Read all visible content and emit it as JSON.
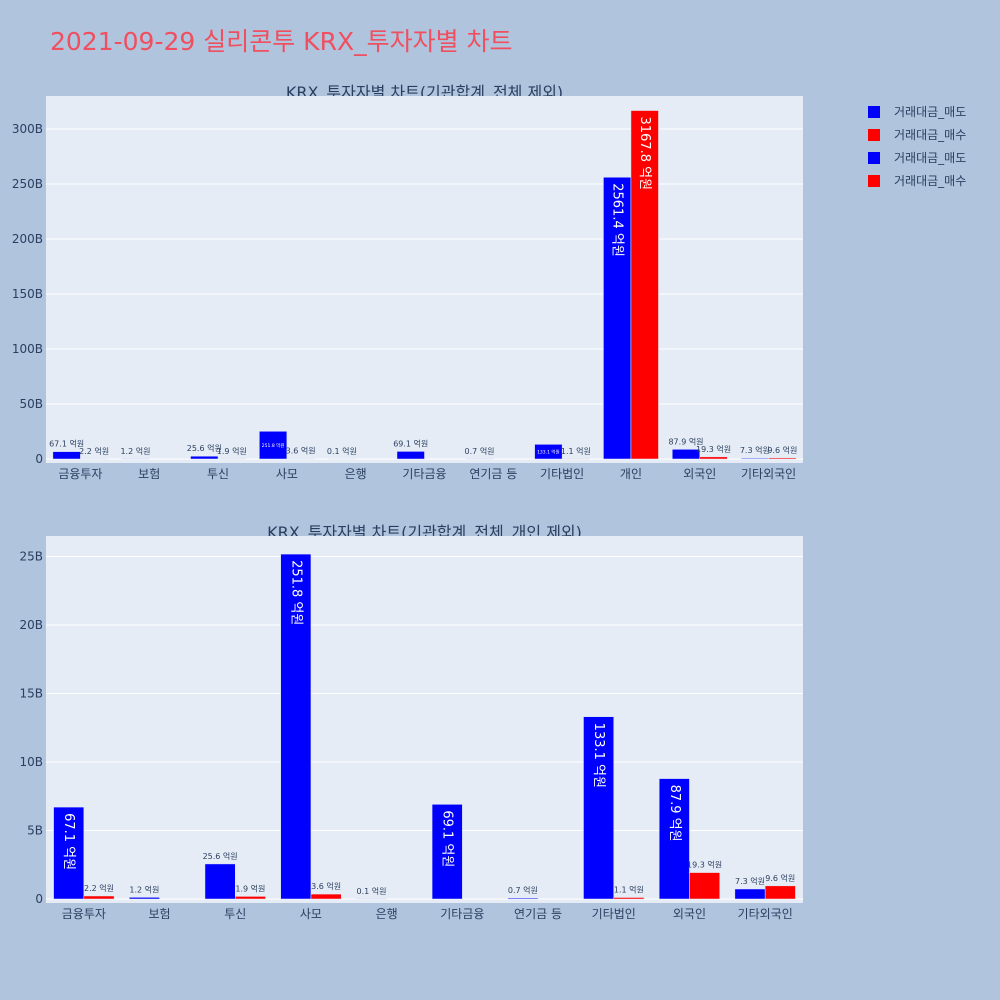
{
  "title": "2021-09-29 실리콘투 KRX_투자자별 차트",
  "legend": [
    {
      "label": "거래대금_매도",
      "color": "#0000ff"
    },
    {
      "label": "거래대금_매수",
      "color": "#ff0000"
    },
    {
      "label": "거래대금_매도",
      "color": "#0000ff"
    },
    {
      "label": "거래대금_매수",
      "color": "#ff0000"
    }
  ],
  "colors": {
    "sell": "#0000ff",
    "buy": "#ff0000",
    "plot_bg": "#e5ecf6",
    "page_bg": "#b0c4de"
  },
  "chart_data": [
    {
      "type": "bar",
      "title": "KRX_투자자별 차트(기관합계_전체 제외)",
      "categories": [
        "금융투자",
        "보험",
        "투신",
        "사모",
        "은행",
        "기타금융",
        "연기금 등",
        "기타법인",
        "개인",
        "외국인",
        "기타외국인"
      ],
      "series": [
        {
          "name": "거래대금_매도",
          "values": [
            6.71,
            0.12,
            2.56,
            25.18,
            0.01,
            6.91,
            0.07,
            13.31,
            256.14,
            8.79,
            0.73
          ],
          "labels": [
            "67.1 억원",
            "1.2 억원",
            "25.6 억원",
            "251.8 억원",
            "0.1 억원",
            "69.1 억원",
            "0.7 억원",
            "133.1 억원",
            "2561.4 억원",
            "87.9 억원",
            "7.3 억원"
          ]
        },
        {
          "name": "거래대금_매수",
          "values": [
            0.22,
            0,
            0.19,
            0.36,
            0,
            0,
            0,
            0.11,
            316.78,
            1.93,
            0.96
          ],
          "labels": [
            "2.2 억원",
            "",
            "1.9 억원",
            "3.6 억원",
            "",
            "",
            "",
            "1.1 억원",
            "3167.8 억원",
            "19.3 억원",
            "9.6 억원"
          ]
        }
      ],
      "ylim": [
        0,
        330
      ],
      "yticks": [
        0,
        50,
        100,
        150,
        200,
        250,
        300
      ],
      "ytick_labels": [
        "0",
        "50B",
        "100B",
        "150B",
        "200B",
        "250B",
        "300B"
      ]
    },
    {
      "type": "bar",
      "title": "KRX_투자자별 차트(기관합계_전체_개인 제외)",
      "categories": [
        "금융투자",
        "보험",
        "투신",
        "사모",
        "은행",
        "기타금융",
        "연기금 등",
        "기타법인",
        "외국인",
        "기타외국인"
      ],
      "series": [
        {
          "name": "거래대금_매도",
          "values": [
            6.71,
            0.12,
            2.56,
            25.18,
            0.01,
            6.91,
            0.07,
            13.31,
            8.79,
            0.73
          ],
          "labels": [
            "67.1 억원",
            "1.2 억원",
            "25.6 억원",
            "251.8 억원",
            "0.1 억원",
            "69.1 억원",
            "0.7 억원",
            "133.1 억원",
            "87.9 억원",
            "7.3 억원"
          ]
        },
        {
          "name": "거래대금_매수",
          "values": [
            0.22,
            0,
            0.19,
            0.36,
            0,
            0,
            0,
            0.11,
            1.93,
            0.96
          ],
          "labels": [
            "2.2 억원",
            "",
            "1.9 억원",
            "3.6 억원",
            "",
            "",
            "",
            "1.1 억원",
            "19.3 억원",
            "9.6 억원"
          ]
        }
      ],
      "ylim": [
        0,
        26.5
      ],
      "yticks": [
        0,
        5,
        10,
        15,
        20,
        25
      ],
      "ytick_labels": [
        "0",
        "5B",
        "10B",
        "15B",
        "20B",
        "25B"
      ]
    }
  ]
}
